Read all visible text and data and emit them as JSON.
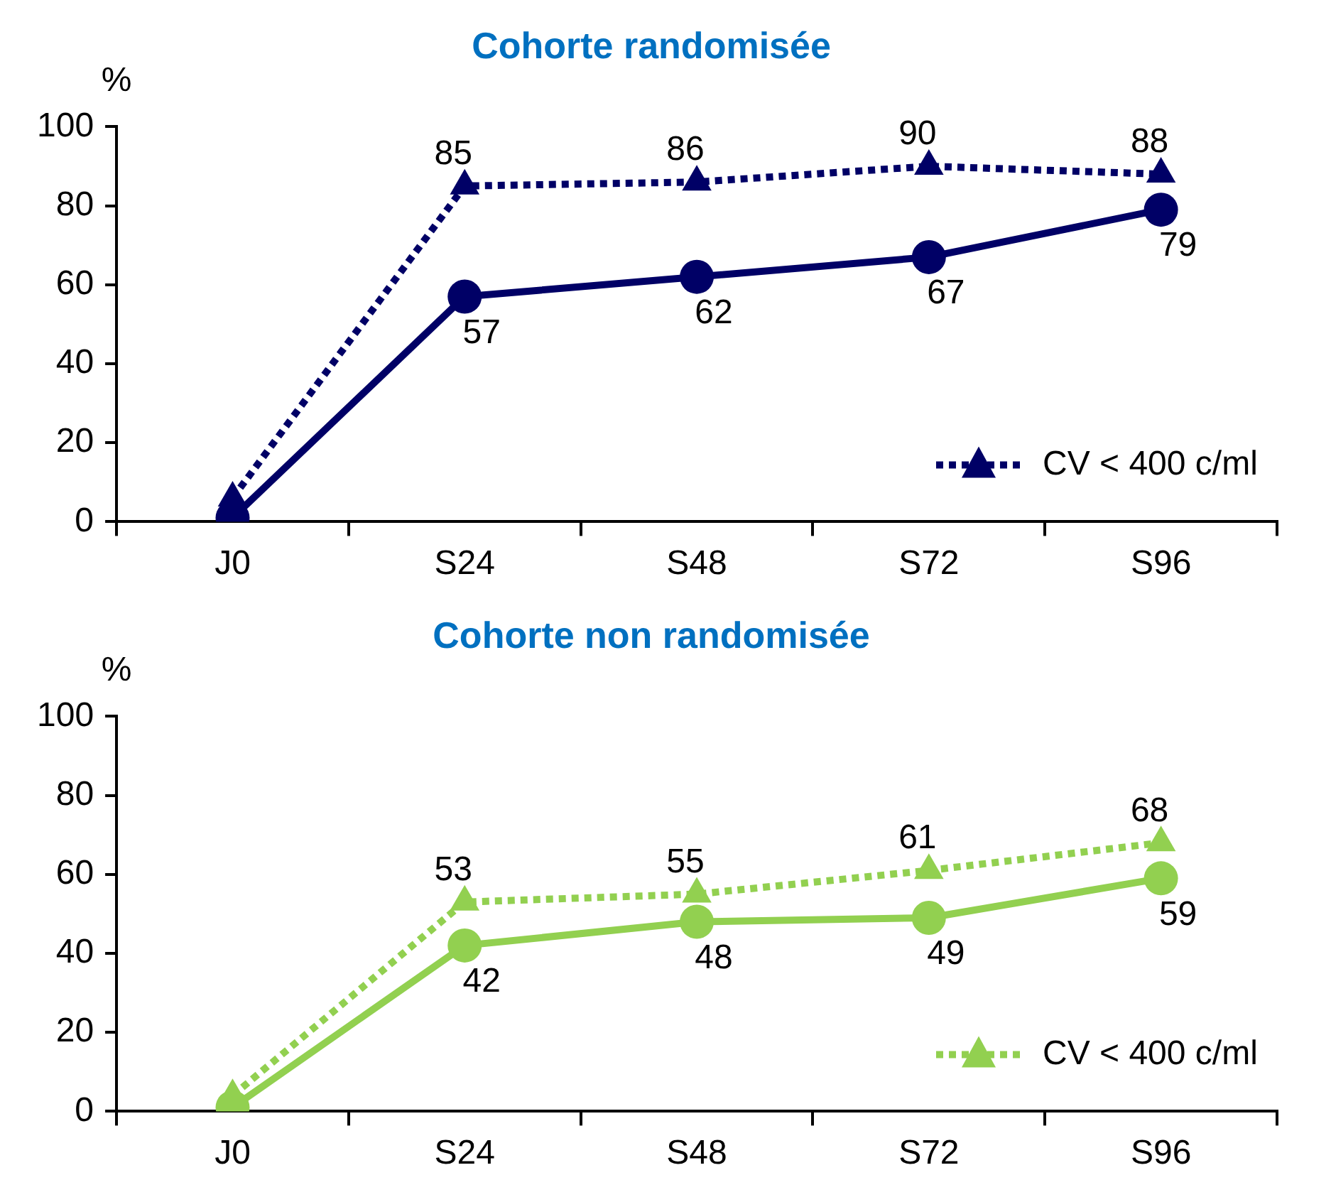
{
  "chart_data": [
    {
      "type": "line",
      "title": "Cohorte randomisée",
      "ylabel": "%",
      "categories": [
        "J0",
        "S24",
        "S48",
        "S72",
        "S96"
      ],
      "ylim": [
        0,
        100
      ],
      "yticks": [
        0,
        20,
        40,
        60,
        80,
        100
      ],
      "grid": false,
      "legend": "bottom right",
      "series": [
        {
          "name": "CV < 400 c/ml",
          "color": "#000066",
          "marker": "triangle",
          "line_style": "dotted",
          "values": [
            6,
            85,
            86,
            90,
            88
          ],
          "value_labels": [
            null,
            "85",
            "86",
            "90",
            "88"
          ]
        },
        {
          "color": "#000066",
          "marker": "circle",
          "line_style": "solid",
          "values": [
            1,
            57,
            62,
            67,
            79
          ],
          "value_labels": [
            null,
            "57",
            "62",
            "67",
            "79"
          ]
        }
      ]
    },
    {
      "type": "line",
      "title": "Cohorte non randomisée",
      "ylabel": "%",
      "categories": [
        "J0",
        "S24",
        "S48",
        "S72",
        "S96"
      ],
      "ylim": [
        0,
        100
      ],
      "yticks": [
        0,
        20,
        40,
        60,
        80,
        100
      ],
      "grid": false,
      "legend": "bottom right",
      "series": [
        {
          "name": "CV < 400 c/ml",
          "color": "#92d050",
          "marker": "triangle",
          "line_style": "dotted",
          "values": [
            4,
            53,
            55,
            61,
            68
          ],
          "value_labels": [
            null,
            "53",
            "55",
            "61",
            "68"
          ]
        },
        {
          "color": "#92d050",
          "marker": "circle",
          "line_style": "solid",
          "values": [
            1,
            42,
            48,
            49,
            59
          ],
          "value_labels": [
            null,
            "42",
            "48",
            "49",
            "59"
          ]
        }
      ]
    }
  ]
}
